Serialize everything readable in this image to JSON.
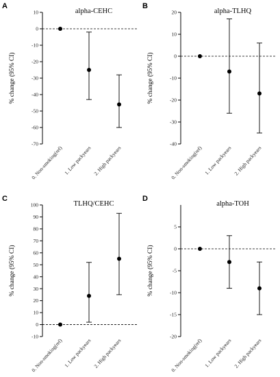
{
  "chart_data": [
    {
      "type": "scatter",
      "panel": "A",
      "title": "alpha-CEHC",
      "ylabel": "% change (95% CI)",
      "categories": [
        "0. Non-smoking(ref)",
        "1. Low packyears",
        "2. High packyears"
      ],
      "ylim": [
        -70,
        10
      ],
      "yticks": [
        10,
        0,
        -10,
        -20,
        -30,
        -40,
        -50,
        -60,
        -70
      ],
      "reference_line": 0,
      "series": [
        {
          "values": [
            0,
            -25,
            -46
          ],
          "lower": [
            0,
            -43,
            -60
          ],
          "upper": [
            0,
            -2,
            -28
          ]
        }
      ]
    },
    {
      "type": "scatter",
      "panel": "B",
      "title": "alpha-TLHQ",
      "ylabel": "% change (95% CI)",
      "categories": [
        "0. Non-smoking(ref)",
        "1. Low packyears",
        "2. High packyears"
      ],
      "ylim": [
        -40,
        20
      ],
      "yticks": [
        20,
        10,
        0,
        -10,
        -20,
        -30,
        -40
      ],
      "reference_line": 0,
      "series": [
        {
          "values": [
            0,
            -7,
            -17
          ],
          "lower": [
            0,
            -26,
            -35
          ],
          "upper": [
            0,
            17,
            6
          ]
        }
      ]
    },
    {
      "type": "scatter",
      "panel": "C",
      "title": "TLHQ/CEHC",
      "ylabel": "% change (95% CI)",
      "categories": [
        "0. Non-smoking(ref)",
        "1. Low packyears",
        "2. High packyears"
      ],
      "ylim": [
        -10,
        100
      ],
      "yticks": [
        100,
        90,
        80,
        70,
        60,
        50,
        40,
        30,
        20,
        10,
        0,
        -10
      ],
      "reference_line": 0,
      "series": [
        {
          "values": [
            0,
            24,
            55
          ],
          "lower": [
            0,
            2,
            25
          ],
          "upper": [
            0,
            52,
            93
          ]
        }
      ]
    },
    {
      "type": "scatter",
      "panel": "D",
      "title": "alpha-TOH",
      "ylabel": "% change (95% CI)",
      "categories": [
        "0. Non-smoking(ref)",
        "1. Low packyears",
        "2. High packyears"
      ],
      "ylim": [
        -20,
        10
      ],
      "yticks": [
        5,
        0,
        -5,
        -10,
        -15,
        -20
      ],
      "reference_line": 0,
      "series": [
        {
          "values": [
            0,
            -3,
            -9
          ],
          "lower": [
            0,
            -9,
            -15
          ],
          "upper": [
            0,
            3,
            -3
          ]
        }
      ]
    }
  ]
}
